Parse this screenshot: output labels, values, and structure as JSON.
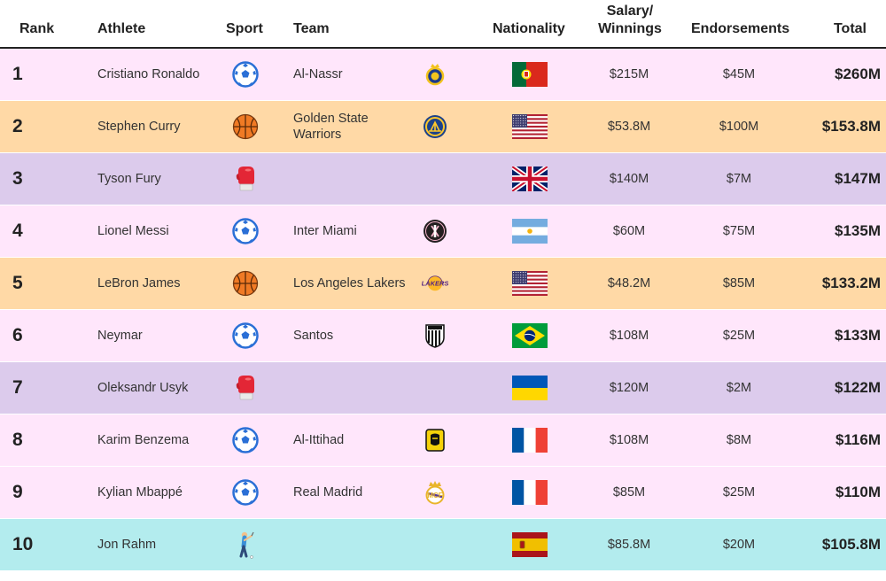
{
  "headers": {
    "rank": "Rank",
    "athlete": "Athlete",
    "sport": "Sport",
    "team": "Team",
    "nationality": "Nationality",
    "salary_line1": "Salary/",
    "salary_line2": "Winnings",
    "endorsements": "Endorsements",
    "total": "Total"
  },
  "colors": {
    "soccer": "#ffe6fb",
    "basketball": "#ffd9a6",
    "boxing": "#dccbec",
    "golf": "#b3ecee"
  },
  "rows": [
    {
      "rank": "1",
      "athlete": "Cristiano Ronaldo",
      "sport": "soccer-icon",
      "team": "Al-Nassr",
      "team_logo": "al-nassr-logo",
      "flag": "portugal-flag",
      "salary": "$215M",
      "endorsements": "$45M",
      "total": "$260M",
      "color": "#ffe6fb"
    },
    {
      "rank": "2",
      "athlete": "Stephen Curry",
      "sport": "basketball-icon",
      "team": "Golden State Warriors",
      "team_logo": "warriors-logo",
      "flag": "usa-flag",
      "salary": "$53.8M",
      "endorsements": "$100M",
      "total": "$153.8M",
      "color": "#ffd9a6"
    },
    {
      "rank": "3",
      "athlete": "Tyson Fury",
      "sport": "boxing-glove-icon",
      "team": "",
      "team_logo": "",
      "flag": "uk-flag",
      "salary": "$140M",
      "endorsements": "$7M",
      "total": "$147M",
      "color": "#dccbec"
    },
    {
      "rank": "4",
      "athlete": "Lionel Messi",
      "sport": "soccer-icon",
      "team": "Inter Miami",
      "team_logo": "inter-miami-logo",
      "flag": "argentina-flag",
      "salary": "$60M",
      "endorsements": "$75M",
      "total": "$135M",
      "color": "#ffe6fb"
    },
    {
      "rank": "5",
      "athlete": "LeBron James",
      "sport": "basketball-icon",
      "team": "Los Angeles Lakers",
      "team_logo": "lakers-logo",
      "flag": "usa-flag",
      "salary": "$48.2M",
      "endorsements": "$85M",
      "total": "$133.2M",
      "color": "#ffd9a6"
    },
    {
      "rank": "6",
      "athlete": "Neymar",
      "sport": "soccer-icon",
      "team": "Santos",
      "team_logo": "santos-logo",
      "flag": "brazil-flag",
      "salary": "$108M",
      "endorsements": "$25M",
      "total": "$133M",
      "color": "#ffe6fb"
    },
    {
      "rank": "7",
      "athlete": "Oleksandr Usyk",
      "sport": "boxing-glove-icon",
      "team": "",
      "team_logo": "",
      "flag": "ukraine-flag",
      "salary": "$120M",
      "endorsements": "$2M",
      "total": "$122M",
      "color": "#dccbec"
    },
    {
      "rank": "8",
      "athlete": "Karim Benzema",
      "sport": "soccer-icon",
      "team": "Al-Ittihad",
      "team_logo": "al-ittihad-logo",
      "flag": "france-flag",
      "salary": "$108M",
      "endorsements": "$8M",
      "total": "$116M",
      "color": "#ffe6fb"
    },
    {
      "rank": "9",
      "athlete": "Kylian Mbappé",
      "sport": "soccer-icon",
      "team": "Real Madrid",
      "team_logo": "real-madrid-logo",
      "flag": "france-flag",
      "salary": "$85M",
      "endorsements": "$25M",
      "total": "$110M",
      "color": "#ffe6fb"
    },
    {
      "rank": "10",
      "athlete": "Jon Rahm",
      "sport": "golfer-icon",
      "team": "",
      "team_logo": "",
      "flag": "spain-flag",
      "salary": "$85.8M",
      "endorsements": "$20M",
      "total": "$105.8M",
      "color": "#b3ecee"
    }
  ]
}
